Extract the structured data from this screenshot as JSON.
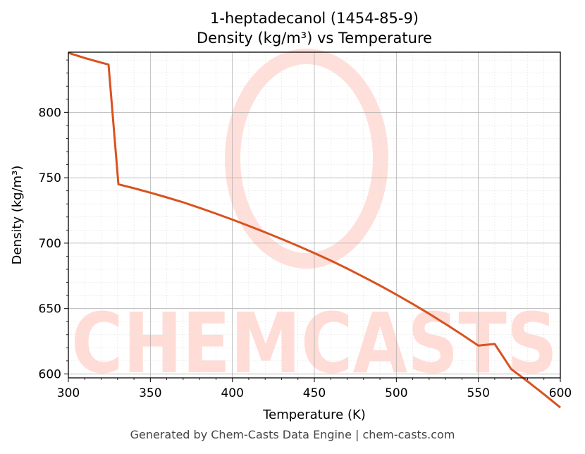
{
  "chart_data": {
    "type": "line",
    "title_line1": "1-heptadecanol (1454-85-9)",
    "title_line2": "Density (kg/m³) vs Temperature",
    "xlabel": "Temperature (K)",
    "ylabel": "Density (kg/m³)",
    "xlim": [
      300,
      600
    ],
    "ylim": [
      597,
      846
    ],
    "xticks": [
      300,
      350,
      400,
      450,
      500,
      550,
      600
    ],
    "yticks": [
      600,
      650,
      700,
      750,
      800
    ],
    "grid": true,
    "line_color": "#d9521f",
    "series": [
      {
        "x": [
          300,
          310,
          320,
          324.5,
          330.5,
          340,
          350,
          360,
          370,
          380,
          390,
          400,
          410,
          420,
          430,
          440,
          450,
          460,
          470,
          480,
          490,
          500,
          510,
          520,
          530,
          540,
          550,
          560,
          570,
          580,
          590,
          600
        ],
        "y": [
          845.5,
          841.5,
          838,
          836.5,
          745,
          742,
          738.6,
          735,
          731.2,
          727,
          722.6,
          718,
          713.2,
          708.3,
          703.2,
          697.9,
          692.4,
          686.7,
          680.6,
          674.2,
          667.6,
          660.7,
          653.5,
          646,
          638.2,
          630.1,
          621.7,
          622.9,
          603.8,
          594.3,
          584.5,
          574.3
        ]
      }
    ]
  },
  "watermark": {
    "text": "CHEMCASTS",
    "color": "#ffdcd6"
  },
  "footer": "Generated by Chem-Casts Data Engine | chem-casts.com"
}
